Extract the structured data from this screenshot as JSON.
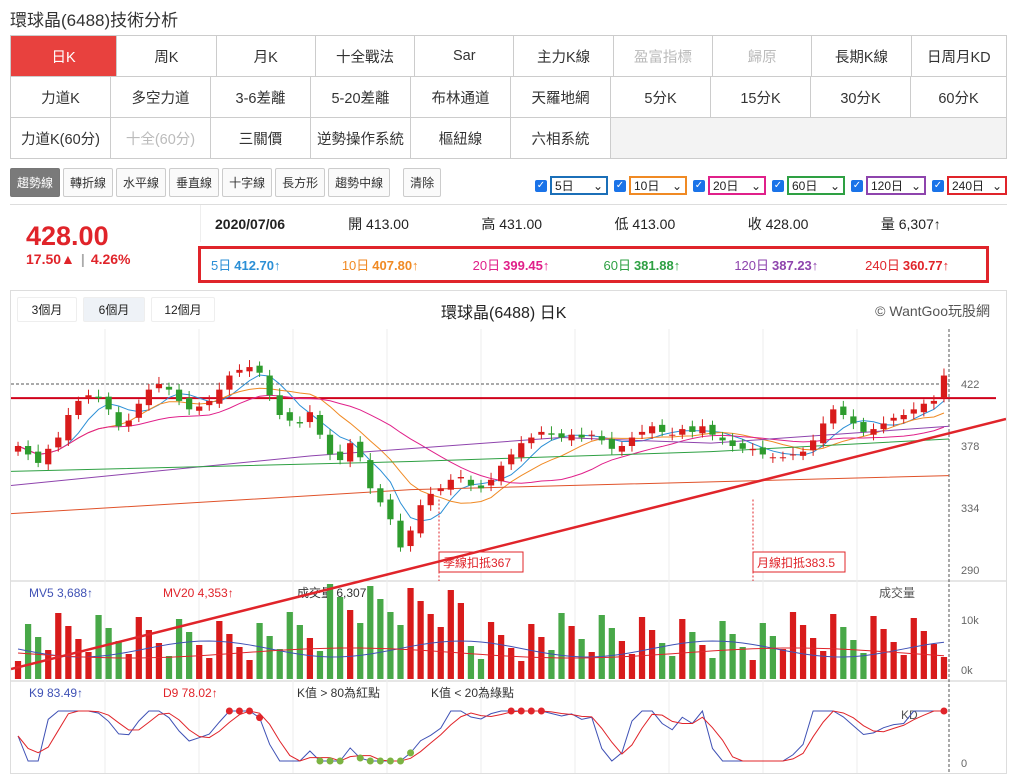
{
  "title": "環球晶(6488)技術分析",
  "tabs": [
    [
      "日K",
      "周K",
      "月K",
      "十全戰法",
      "Sar",
      "主力K線",
      "盈富指標",
      "歸原",
      "長期K線",
      "日周月KD"
    ],
    [
      "力道K",
      "多空力道",
      "3-6差離",
      "5-20差離",
      "布林通道",
      "天羅地網",
      "5分K",
      "15分K",
      "30分K",
      "60分K"
    ],
    [
      "力道K(60分)",
      "十全(60分)",
      "三關價",
      "逆勢操作系統",
      "樞紐線",
      "六相系統"
    ]
  ],
  "tools": [
    "趨勢線",
    "轉折線",
    "水平線",
    "垂直線",
    "十字線",
    "長方形",
    "趨勢中線",
    "清除"
  ],
  "ma_selectors": [
    {
      "label": "5日",
      "color": "#1b6fb8"
    },
    {
      "label": "10日",
      "color": "#f08a24"
    },
    {
      "label": "20日",
      "color": "#e0208a"
    },
    {
      "label": "60日",
      "color": "#2ea043"
    },
    {
      "label": "120日",
      "color": "#8e44ad"
    },
    {
      "label": "240日",
      "color": "#e0242a"
    }
  ],
  "quote": {
    "price": "428.00",
    "change": "17.50▲",
    "pct": "4.26%",
    "date": "2020/07/06",
    "open": "開 413.00",
    "high": "高 431.00",
    "low": "低 413.00",
    "close": "收 428.00",
    "volume": "量 6,307↑"
  },
  "ma_values": [
    {
      "label": "5日",
      "value": "412.70↑",
      "color": "#2b8fd6"
    },
    {
      "label": "10日",
      "value": "407.80↑",
      "color": "#f08a24"
    },
    {
      "label": "20日",
      "value": "399.45↑",
      "color": "#e0208a"
    },
    {
      "label": "60日",
      "value": "381.88↑",
      "color": "#2ea043"
    },
    {
      "label": "120日",
      "value": "387.23↑",
      "color": "#8e44ad"
    },
    {
      "label": "240日",
      "value": "360.77↑",
      "color": "#e0242a"
    }
  ],
  "ranges": [
    "3個月",
    "6個月",
    "12個月"
  ],
  "chart_title": "環球晶(6488) 日K",
  "copyright": "© WantGoo玩股網",
  "chart_data": {
    "type": "candlestick",
    "price_ticks": [
      "422",
      "378",
      "334",
      "290"
    ],
    "price_levels": [
      422,
      378,
      334,
      290
    ],
    "annotations": [
      "季線扣抵367",
      "月線扣抵383.5"
    ],
    "volume_title": "成交量",
    "volume_ticks": [
      "10k",
      "0k"
    ],
    "volume_legend": [
      {
        "label": "MV5",
        "value": "3,688↑",
        "color": "#3f51b5"
      },
      {
        "label": "MV20",
        "value": "4,353↑",
        "color": "#e0242a"
      },
      {
        "label": "成交量",
        "value": "6,307↑",
        "color": "#333"
      }
    ],
    "kd_title": "KD",
    "kd_ticks": [
      "0"
    ],
    "kd_legend": [
      {
        "label": "K9",
        "value": "83.49↑",
        "color": "#3f51b5"
      },
      {
        "label": "D9",
        "value": "78.02↑",
        "color": "#e0242a"
      },
      {
        "label": "",
        "value": "K值 > 80為紅點",
        "color": "#333"
      },
      {
        "label": "",
        "value": "K值 < 20為綠點",
        "color": "#333"
      }
    ],
    "closes": [
      378,
      372,
      366,
      376,
      384,
      400,
      410,
      414,
      412,
      404,
      392,
      396,
      408,
      418,
      422,
      418,
      410,
      404,
      406,
      410,
      418,
      428,
      432,
      434,
      430,
      414,
      400,
      396,
      394,
      402,
      386,
      372,
      368,
      380,
      370,
      348,
      338,
      326,
      306,
      318,
      336,
      344,
      348,
      354,
      356,
      350,
      348,
      354,
      364,
      372,
      380,
      384,
      388,
      386,
      384,
      386,
      384,
      386,
      382,
      376,
      378,
      384,
      388,
      392,
      388,
      386,
      390,
      388,
      392,
      386,
      382,
      378,
      376,
      376,
      372,
      370,
      370,
      372,
      374,
      382,
      394,
      404,
      400,
      394,
      388,
      390,
      394,
      398,
      400,
      404,
      408,
      410,
      428
    ]
  }
}
